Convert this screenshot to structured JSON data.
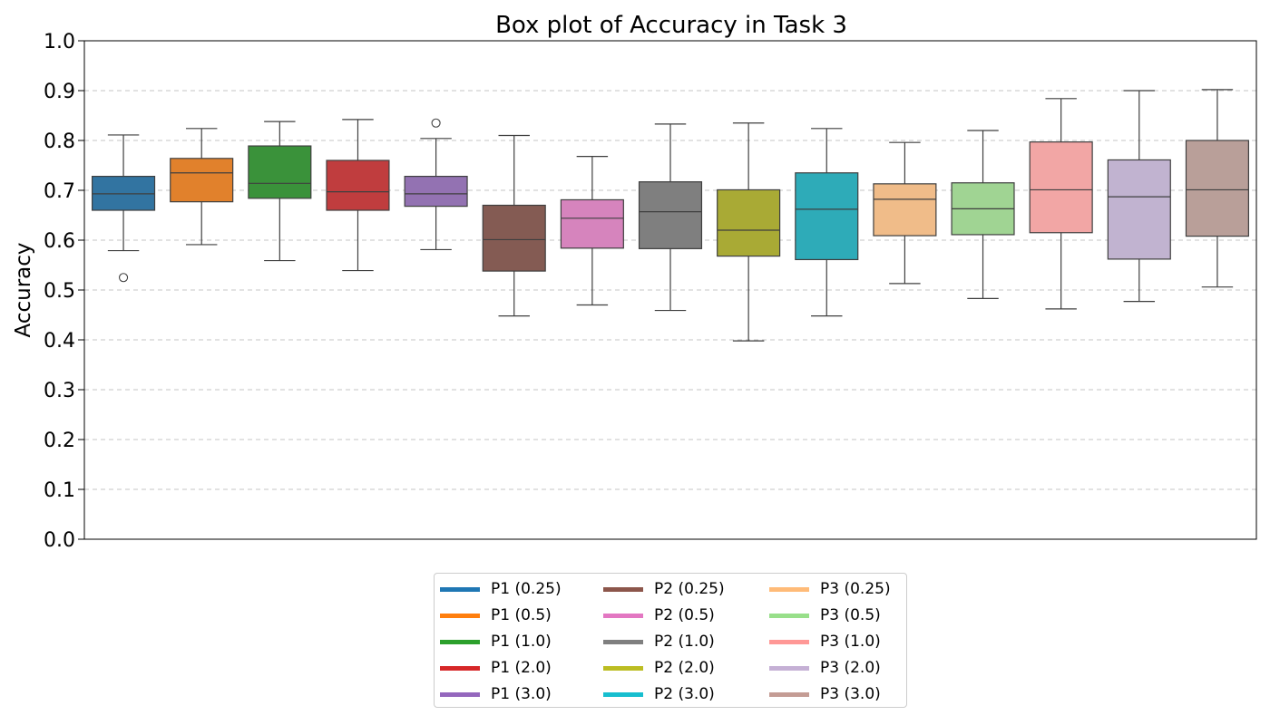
{
  "chart_data": {
    "type": "box",
    "title": "Box plot of Accuracy in Task 3",
    "xlabel": "",
    "ylabel": "Accuracy",
    "ylim": [
      0.0,
      1.0
    ],
    "yticks": [
      "0.0",
      "0.1",
      "0.2",
      "0.3",
      "0.4",
      "0.5",
      "0.6",
      "0.7",
      "0.8",
      "0.9",
      "1.0"
    ],
    "grid": "y-dashed",
    "legend_placement": "bottom-center",
    "series": [
      {
        "name": "P1 (0.25)",
        "color": "#1f77b4",
        "box_color": "#3274a1",
        "whisker_low": 0.579,
        "q1": 0.66,
        "median": 0.693,
        "q3": 0.728,
        "whisker_high": 0.811,
        "outliers": [
          0.525
        ]
      },
      {
        "name": "P1 (0.5)",
        "color": "#ff7f0e",
        "box_color": "#e1812c",
        "whisker_low": 0.591,
        "q1": 0.677,
        "median": 0.735,
        "q3": 0.764,
        "whisker_high": 0.824,
        "outliers": []
      },
      {
        "name": "P1 (1.0)",
        "color": "#2ca02c",
        "box_color": "#3a923a",
        "whisker_low": 0.559,
        "q1": 0.684,
        "median": 0.714,
        "q3": 0.789,
        "whisker_high": 0.838,
        "outliers": []
      },
      {
        "name": "P1 (2.0)",
        "color": "#d62728",
        "box_color": "#c03d3e",
        "whisker_low": 0.539,
        "q1": 0.66,
        "median": 0.697,
        "q3": 0.76,
        "whisker_high": 0.842,
        "outliers": []
      },
      {
        "name": "P1 (3.0)",
        "color": "#9467bd",
        "box_color": "#9372b2",
        "whisker_low": 0.581,
        "q1": 0.668,
        "median": 0.693,
        "q3": 0.728,
        "whisker_high": 0.804,
        "outliers": [
          0.835
        ]
      },
      {
        "name": "P2 (0.25)",
        "color": "#8c564b",
        "box_color": "#845b53",
        "whisker_low": 0.448,
        "q1": 0.538,
        "median": 0.601,
        "q3": 0.67,
        "whisker_high": 0.81,
        "outliers": []
      },
      {
        "name": "P2 (0.5)",
        "color": "#e377c2",
        "box_color": "#d684bd",
        "whisker_low": 0.47,
        "q1": 0.584,
        "median": 0.644,
        "q3": 0.681,
        "whisker_high": 0.768,
        "outliers": []
      },
      {
        "name": "P2 (1.0)",
        "color": "#7f7f7f",
        "box_color": "#7f7f7f",
        "whisker_low": 0.459,
        "q1": 0.583,
        "median": 0.657,
        "q3": 0.717,
        "whisker_high": 0.833,
        "outliers": []
      },
      {
        "name": "P2 (2.0)",
        "color": "#bcbd22",
        "box_color": "#a9aa35",
        "whisker_low": 0.398,
        "q1": 0.568,
        "median": 0.62,
        "q3": 0.701,
        "whisker_high": 0.835,
        "outliers": []
      },
      {
        "name": "P2 (3.0)",
        "color": "#17becf",
        "box_color": "#2eabb8",
        "whisker_low": 0.448,
        "q1": 0.561,
        "median": 0.662,
        "q3": 0.735,
        "whisker_high": 0.824,
        "outliers": []
      },
      {
        "name": "P3 (0.25)",
        "color": "#ffbb78",
        "box_color": "#f0bc89",
        "whisker_low": 0.513,
        "q1": 0.609,
        "median": 0.682,
        "q3": 0.713,
        "whisker_high": 0.796,
        "outliers": []
      },
      {
        "name": "P3 (0.5)",
        "color": "#98df8a",
        "box_color": "#a0d493",
        "whisker_low": 0.483,
        "q1": 0.611,
        "median": 0.663,
        "q3": 0.715,
        "whisker_high": 0.82,
        "outliers": []
      },
      {
        "name": "P3 (1.0)",
        "color": "#ff9896",
        "box_color": "#f2a6a5",
        "whisker_low": 0.462,
        "q1": 0.615,
        "median": 0.701,
        "q3": 0.797,
        "whisker_high": 0.884,
        "outliers": []
      },
      {
        "name": "P3 (2.0)",
        "color": "#c5b0d5",
        "box_color": "#c1b3d0",
        "whisker_low": 0.477,
        "q1": 0.562,
        "median": 0.687,
        "q3": 0.761,
        "whisker_high": 0.9,
        "outliers": []
      },
      {
        "name": "P3 (3.0)",
        "color": "#c49c94",
        "box_color": "#b99f99",
        "whisker_low": 0.506,
        "q1": 0.608,
        "median": 0.701,
        "q3": 0.8,
        "whisker_high": 0.902,
        "outliers": []
      }
    ]
  }
}
